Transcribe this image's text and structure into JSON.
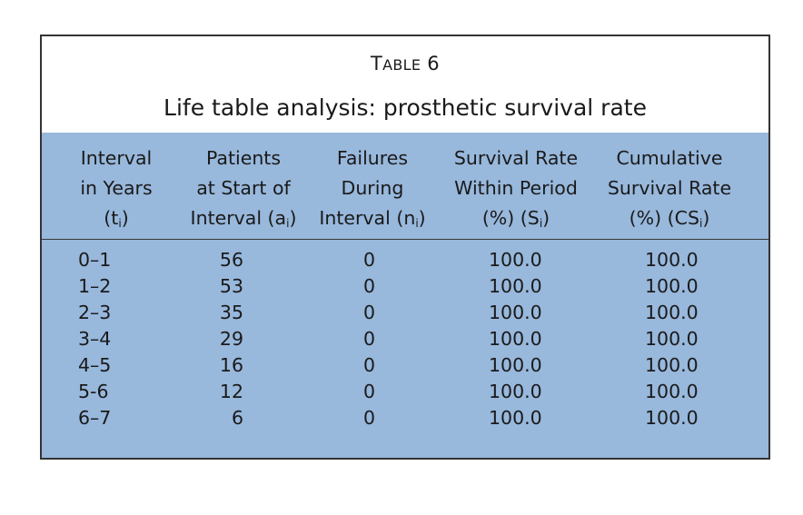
{
  "table": {
    "label_first": "T",
    "label_rest": "ABLE",
    "label_number": "6",
    "title": "Life table analysis: prosthetic survival rate",
    "headers": [
      {
        "l1": "Interval",
        "l2": "in Years",
        "l3_pre": "(t",
        "l3_sub": "i",
        "l3_post": ")"
      },
      {
        "l1": "Patients",
        "l2": "at Start of",
        "l3_pre": "Interval (a",
        "l3_sub": "i",
        "l3_post": ")"
      },
      {
        "l1": "Failures",
        "l2": "During",
        "l3_pre": "Interval (n",
        "l3_sub": "i",
        "l3_post": ")"
      },
      {
        "l1": "Survival Rate",
        "l2": "Within Period",
        "l3_pre": "(%) (S",
        "l3_sub": "i",
        "l3_post": ")"
      },
      {
        "l1": "Cumulative",
        "l2": "Survival Rate",
        "l3_pre": "(%) (CS",
        "l3_sub": "i",
        "l3_post": ")"
      }
    ],
    "rows": [
      [
        "0–1",
        "56",
        "0",
        "100.0",
        "100.0"
      ],
      [
        "1–2",
        "53",
        "0",
        "100.0",
        "100.0"
      ],
      [
        "2–3",
        "35",
        "0",
        "100.0",
        "100.0"
      ],
      [
        "3–4",
        "29",
        "0",
        "100.0",
        "100.0"
      ],
      [
        "4–5",
        "16",
        "0",
        "100.0",
        "100.0"
      ],
      [
        "5-6",
        "12",
        "0",
        "100.0",
        "100.0"
      ],
      [
        "6–7",
        "6",
        "0",
        "100.0",
        "100.0"
      ]
    ]
  }
}
